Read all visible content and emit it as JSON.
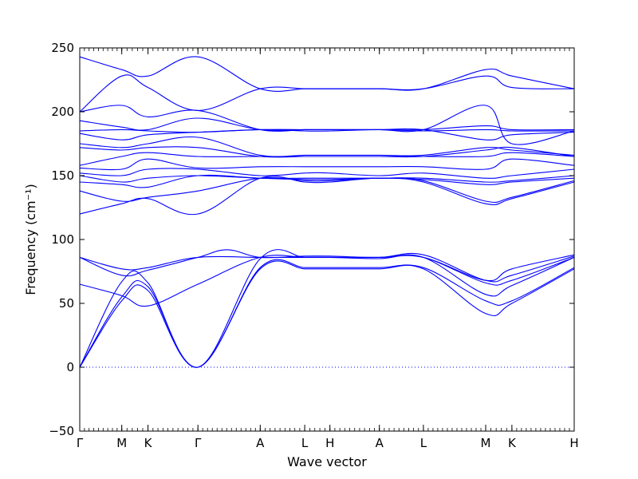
{
  "chart_data": {
    "type": "line",
    "xlabel": "Wave vector",
    "ylabel": "Frequency (cm⁻¹)",
    "ylim": [
      -50,
      250
    ],
    "yticks": [
      -50,
      0,
      50,
      100,
      150,
      200,
      250
    ],
    "zero_line": "dotted",
    "line_color": "#0000ff",
    "legend": "none",
    "grid": false,
    "high_symmetry_points": [
      {
        "label": "Γ",
        "x": 0.0
      },
      {
        "label": "M",
        "x": 0.085
      },
      {
        "label": "K",
        "x": 0.138
      },
      {
        "label": "Γ",
        "x": 0.239
      },
      {
        "label": "A",
        "x": 0.365
      },
      {
        "label": "L",
        "x": 0.455
      },
      {
        "label": "H",
        "x": 0.506
      },
      {
        "label": "A",
        "x": 0.606
      },
      {
        "label": "L",
        "x": 0.695
      },
      {
        "label": "M",
        "x": 0.821
      },
      {
        "label": "K",
        "x": 0.874
      },
      {
        "label": "H",
        "x": 1.0
      }
    ],
    "bands": [
      [
        [
          0,
          0
        ],
        [
          0.085,
          52
        ],
        [
          0.138,
          60
        ],
        [
          0.239,
          0
        ],
        [
          0.365,
          77
        ],
        [
          0.455,
          77
        ],
        [
          0.506,
          77
        ],
        [
          0.606,
          77
        ],
        [
          0.695,
          77
        ],
        [
          0.821,
          42
        ],
        [
          0.874,
          50
        ],
        [
          1.0,
          77
        ]
      ],
      [
        [
          0,
          0
        ],
        [
          0.085,
          55
        ],
        [
          0.138,
          63
        ],
        [
          0.239,
          0
        ],
        [
          0.365,
          78
        ],
        [
          0.455,
          78
        ],
        [
          0.506,
          78
        ],
        [
          0.606,
          78
        ],
        [
          0.695,
          78
        ],
        [
          0.821,
          52
        ],
        [
          0.874,
          52
        ],
        [
          1.0,
          78
        ]
      ],
      [
        [
          0,
          0
        ],
        [
          0.085,
          67
        ],
        [
          0.138,
          66
        ],
        [
          0.239,
          0
        ],
        [
          0.365,
          85
        ],
        [
          0.455,
          86
        ],
        [
          0.506,
          86
        ],
        [
          0.606,
          85
        ],
        [
          0.695,
          86
        ],
        [
          0.821,
          57
        ],
        [
          0.874,
          64
        ],
        [
          1.0,
          86
        ]
      ],
      [
        [
          0,
          65
        ],
        [
          0.085,
          56
        ],
        [
          0.138,
          48
        ],
        [
          0.239,
          65
        ],
        [
          0.365,
          86
        ],
        [
          0.455,
          86
        ],
        [
          0.506,
          86
        ],
        [
          0.606,
          86
        ],
        [
          0.695,
          86
        ],
        [
          0.821,
          66
        ],
        [
          0.874,
          68
        ],
        [
          1.0,
          86
        ]
      ],
      [
        [
          0,
          86
        ],
        [
          0.085,
          72
        ],
        [
          0.138,
          76
        ],
        [
          0.239,
          86
        ],
        [
          0.298,
          92
        ],
        [
          0.365,
          86
        ],
        [
          0.455,
          87
        ],
        [
          0.506,
          87
        ],
        [
          0.606,
          86
        ],
        [
          0.695,
          88
        ],
        [
          0.821,
          68
        ],
        [
          0.874,
          72
        ],
        [
          1.0,
          87
        ]
      ],
      [
        [
          0,
          86
        ],
        [
          0.085,
          77
        ],
        [
          0.138,
          78
        ],
        [
          0.239,
          86
        ],
        [
          0.365,
          86
        ],
        [
          0.455,
          86
        ],
        [
          0.506,
          86
        ],
        [
          0.606,
          86
        ],
        [
          0.695,
          86
        ],
        [
          0.821,
          68
        ],
        [
          0.874,
          77
        ],
        [
          1.0,
          88
        ]
      ],
      [
        [
          0,
          120
        ],
        [
          0.085,
          128
        ],
        [
          0.138,
          132
        ],
        [
          0.239,
          120
        ],
        [
          0.365,
          148
        ],
        [
          0.455,
          145
        ],
        [
          0.506,
          145
        ],
        [
          0.606,
          148
        ],
        [
          0.695,
          145
        ],
        [
          0.821,
          128
        ],
        [
          0.874,
          132
        ],
        [
          1.0,
          145
        ]
      ],
      [
        [
          0,
          138
        ],
        [
          0.085,
          130
        ],
        [
          0.138,
          133
        ],
        [
          0.239,
          138
        ],
        [
          0.365,
          148
        ],
        [
          0.455,
          146
        ],
        [
          0.506,
          146
        ],
        [
          0.606,
          148
        ],
        [
          0.695,
          146
        ],
        [
          0.821,
          130
        ],
        [
          0.874,
          133
        ],
        [
          1.0,
          146
        ]
      ],
      [
        [
          0,
          145
        ],
        [
          0.085,
          143
        ],
        [
          0.138,
          141
        ],
        [
          0.239,
          150
        ],
        [
          0.365,
          148
        ],
        [
          0.455,
          147
        ],
        [
          0.506,
          147
        ],
        [
          0.606,
          148
        ],
        [
          0.695,
          147
        ],
        [
          0.821,
          143
        ],
        [
          0.874,
          145
        ],
        [
          1.0,
          148
        ]
      ],
      [
        [
          0,
          150
        ],
        [
          0.085,
          145
        ],
        [
          0.138,
          148
        ],
        [
          0.239,
          150
        ],
        [
          0.365,
          148
        ],
        [
          0.455,
          148
        ],
        [
          0.506,
          148
        ],
        [
          0.606,
          148
        ],
        [
          0.695,
          148
        ],
        [
          0.821,
          145
        ],
        [
          0.874,
          146
        ],
        [
          1.0,
          150
        ]
      ],
      [
        [
          0,
          152
        ],
        [
          0.085,
          150
        ],
        [
          0.138,
          155
        ],
        [
          0.239,
          155
        ],
        [
          0.365,
          150
        ],
        [
          0.455,
          152
        ],
        [
          0.506,
          152
        ],
        [
          0.606,
          150
        ],
        [
          0.695,
          152
        ],
        [
          0.821,
          148
        ],
        [
          0.874,
          150
        ],
        [
          1.0,
          155
        ]
      ],
      [
        [
          0,
          156
        ],
        [
          0.085,
          155
        ],
        [
          0.138,
          163
        ],
        [
          0.239,
          156
        ],
        [
          0.365,
          157
        ],
        [
          0.455,
          157
        ],
        [
          0.506,
          157
        ],
        [
          0.606,
          157
        ],
        [
          0.695,
          157
        ],
        [
          0.821,
          155
        ],
        [
          0.874,
          163
        ],
        [
          1.0,
          158
        ]
      ],
      [
        [
          0,
          158
        ],
        [
          0.085,
          165
        ],
        [
          0.138,
          168
        ],
        [
          0.239,
          165
        ],
        [
          0.365,
          165
        ],
        [
          0.455,
          165
        ],
        [
          0.506,
          165
        ],
        [
          0.606,
          165
        ],
        [
          0.695,
          165
        ],
        [
          0.821,
          165
        ],
        [
          0.874,
          168
        ],
        [
          1.0,
          165
        ]
      ],
      [
        [
          0,
          172
        ],
        [
          0.085,
          170
        ],
        [
          0.138,
          172
        ],
        [
          0.239,
          172
        ],
        [
          0.365,
          165
        ],
        [
          0.455,
          165
        ],
        [
          0.506,
          165
        ],
        [
          0.606,
          165
        ],
        [
          0.695,
          165
        ],
        [
          0.821,
          170
        ],
        [
          0.874,
          172
        ],
        [
          1.0,
          165
        ]
      ],
      [
        [
          0,
          175
        ],
        [
          0.085,
          172
        ],
        [
          0.138,
          175
        ],
        [
          0.239,
          180
        ],
        [
          0.365,
          166
        ],
        [
          0.455,
          166
        ],
        [
          0.506,
          166
        ],
        [
          0.606,
          166
        ],
        [
          0.695,
          166
        ],
        [
          0.821,
          172
        ],
        [
          0.874,
          170
        ],
        [
          1.0,
          166
        ]
      ],
      [
        [
          0,
          183
        ],
        [
          0.085,
          178
        ],
        [
          0.138,
          182
        ],
        [
          0.239,
          184
        ],
        [
          0.365,
          186
        ],
        [
          0.455,
          186
        ],
        [
          0.506,
          186
        ],
        [
          0.606,
          186
        ],
        [
          0.695,
          186
        ],
        [
          0.821,
          178
        ],
        [
          0.874,
          182
        ],
        [
          1.0,
          184
        ]
      ],
      [
        [
          0,
          185
        ],
        [
          0.085,
          186
        ],
        [
          0.138,
          185
        ],
        [
          0.239,
          184
        ],
        [
          0.365,
          186
        ],
        [
          0.455,
          185
        ],
        [
          0.506,
          185
        ],
        [
          0.606,
          186
        ],
        [
          0.695,
          185
        ],
        [
          0.821,
          186
        ],
        [
          0.874,
          185
        ],
        [
          1.0,
          185
        ]
      ],
      [
        [
          0,
          193
        ],
        [
          0.085,
          188
        ],
        [
          0.138,
          186
        ],
        [
          0.239,
          195
        ],
        [
          0.365,
          186
        ],
        [
          0.455,
          186
        ],
        [
          0.506,
          186
        ],
        [
          0.606,
          186
        ],
        [
          0.695,
          186
        ],
        [
          0.821,
          189
        ],
        [
          0.874,
          186
        ],
        [
          1.0,
          186
        ]
      ],
      [
        [
          0,
          200
        ],
        [
          0.085,
          205
        ],
        [
          0.138,
          196
        ],
        [
          0.239,
          201
        ],
        [
          0.365,
          186
        ],
        [
          0.455,
          186
        ],
        [
          0.506,
          186
        ],
        [
          0.606,
          186
        ],
        [
          0.695,
          186
        ],
        [
          0.821,
          205
        ],
        [
          0.874,
          175
        ],
        [
          1.0,
          185
        ]
      ],
      [
        [
          0,
          200
        ],
        [
          0.085,
          228
        ],
        [
          0.138,
          219
        ],
        [
          0.239,
          201
        ],
        [
          0.365,
          218
        ],
        [
          0.455,
          218
        ],
        [
          0.506,
          218
        ],
        [
          0.606,
          218
        ],
        [
          0.695,
          218
        ],
        [
          0.821,
          228
        ],
        [
          0.874,
          219
        ],
        [
          1.0,
          218
        ]
      ],
      [
        [
          0,
          243
        ],
        [
          0.085,
          233
        ],
        [
          0.138,
          228
        ],
        [
          0.239,
          243
        ],
        [
          0.365,
          218
        ],
        [
          0.455,
          218
        ],
        [
          0.506,
          218
        ],
        [
          0.606,
          218
        ],
        [
          0.695,
          218
        ],
        [
          0.821,
          233
        ],
        [
          0.874,
          228
        ],
        [
          1.0,
          218
        ]
      ]
    ]
  }
}
